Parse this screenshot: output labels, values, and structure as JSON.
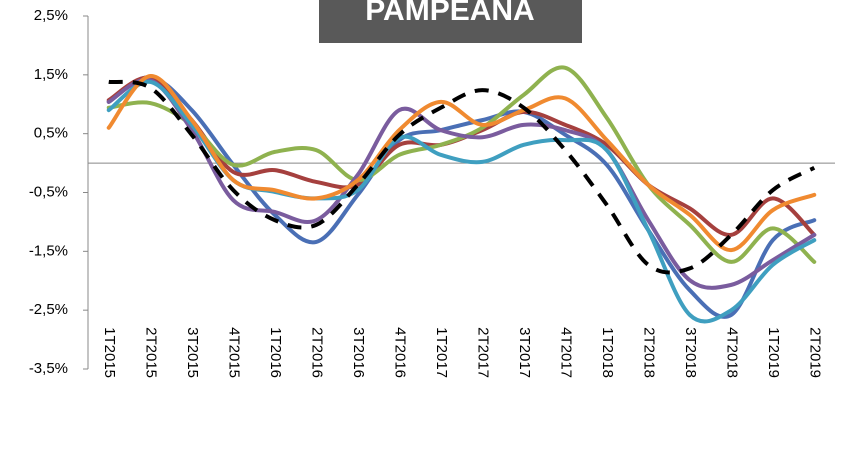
{
  "chart_data": {
    "type": "line",
    "title": "PAMPEANA",
    "categories": [
      "1T2015",
      "2T2015",
      "3T2015",
      "4T2015",
      "1T2016",
      "2T2016",
      "3T2016",
      "4T2016",
      "1T2017",
      "2T2017",
      "3T2017",
      "4T2017",
      "1T2018",
      "2T2018",
      "3T2018",
      "4T2018",
      "1T2019",
      "2T2019"
    ],
    "series": [
      {
        "color": "#4a6fb5",
        "values": [
          1.04,
          1.46,
          0.9,
          -0.03,
          -0.88,
          -1.34,
          -0.54,
          0.39,
          0.56,
          0.73,
          0.87,
          0.48,
          -0.03,
          -1.14,
          -2.16,
          -2.58,
          -1.31,
          -0.97
        ]
      },
      {
        "color": "#a5403e",
        "values": [
          1.07,
          1.45,
          0.73,
          -0.15,
          -0.12,
          -0.32,
          -0.37,
          0.31,
          0.31,
          0.56,
          0.87,
          0.65,
          0.31,
          -0.37,
          -0.77,
          -1.22,
          -0.6,
          -1.22
        ]
      },
      {
        "color": "#8fb24f",
        "values": [
          0.94,
          1.02,
          0.65,
          -0.03,
          0.19,
          0.22,
          -0.29,
          0.14,
          0.31,
          0.6,
          1.16,
          1.62,
          0.77,
          -0.37,
          -1.05,
          -1.68,
          -1.11,
          -1.68
        ]
      },
      {
        "color": "#7a5c9e",
        "values": [
          1.04,
          1.41,
          0.56,
          -0.63,
          -0.83,
          -0.97,
          -0.2,
          0.9,
          0.56,
          0.44,
          0.65,
          0.56,
          0.22,
          -0.97,
          -1.99,
          -2.07,
          -1.65,
          -1.22
        ]
      },
      {
        "color": "#3f9fc0",
        "values": [
          0.9,
          1.38,
          0.65,
          -0.29,
          -0.49,
          -0.6,
          -0.46,
          0.43,
          0.14,
          0.02,
          0.31,
          0.39,
          0.22,
          -1.14,
          -2.58,
          -2.5,
          -1.73,
          -1.31
        ]
      },
      {
        "color": "#f08a30",
        "values": [
          0.6,
          1.48,
          0.73,
          -0.29,
          -0.46,
          -0.6,
          -0.29,
          0.56,
          1.04,
          0.65,
          0.9,
          1.1,
          0.39,
          -0.37,
          -0.88,
          -1.48,
          -0.8,
          -0.54
        ]
      },
      {
        "color": "#000000",
        "dashed": true,
        "values": [
          1.38,
          1.28,
          0.48,
          -0.46,
          -0.97,
          -1.05,
          -0.37,
          0.48,
          0.94,
          1.24,
          0.94,
          0.22,
          -0.71,
          -1.73,
          -1.79,
          -1.22,
          -0.46,
          -0.08
        ]
      }
    ],
    "ylim": [
      -3.5,
      2.5
    ],
    "yticks": [
      {
        "value": -3.5,
        "label": "-3,5%"
      },
      {
        "value": -2.5,
        "label": "-2,5%"
      },
      {
        "value": -1.5,
        "label": "-1,5%"
      },
      {
        "value": -0.5,
        "label": "-0,5%"
      },
      {
        "value": 0.5,
        "label": "0,5%"
      },
      {
        "value": 1.5,
        "label": "1,5%"
      },
      {
        "value": 2.5,
        "label": "2,5%"
      }
    ]
  }
}
